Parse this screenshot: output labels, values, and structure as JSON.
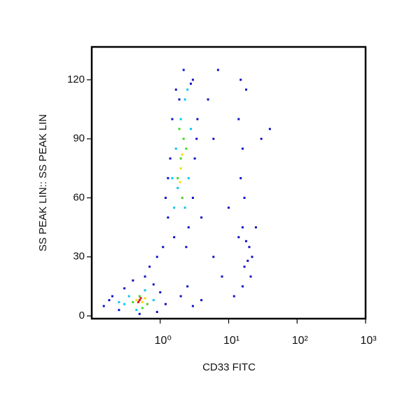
{
  "chart_data": {
    "type": "scatter",
    "x_label": "CD33 FITC",
    "y_label": "SS PEAK LIN:: SS PEAK LIN",
    "xscale": "log",
    "xlim": [
      0.1,
      1000
    ],
    "xticks": [
      {
        "value": 1,
        "label": "10⁰"
      },
      {
        "value": 10,
        "label": "10¹"
      },
      {
        "value": 100,
        "label": "10²"
      },
      {
        "value": 1000,
        "label": "10³"
      }
    ],
    "ylim": [
      -1.4,
      136.7
    ],
    "yticks": [
      0,
      30,
      60,
      90,
      120
    ],
    "grid": false,
    "series": [
      {
        "color": "#1010c8",
        "x": [
          1.3,
          1.2,
          1.4,
          1.5,
          1.7,
          2.2,
          3,
          3.5,
          3.2,
          3,
          2.6,
          1.6,
          1.1,
          1.9,
          2.8,
          1.3,
          3.4,
          2.4,
          5,
          7,
          6,
          4,
          0.15,
          0.2,
          0.25,
          0.3,
          0.4,
          0.6,
          0.8,
          1,
          1.2,
          0.9,
          0.5,
          0.18,
          0.7,
          0.9,
          2,
          3,
          2.5,
          4,
          15,
          18,
          14,
          16,
          15,
          17,
          16,
          14,
          18,
          20,
          22,
          19,
          17,
          21,
          16,
          25,
          30,
          40,
          12,
          10,
          8,
          6
        ],
        "values": [
          50,
          60,
          80,
          100,
          115,
          125,
          120,
          100,
          80,
          60,
          45,
          40,
          35,
          110,
          118,
          70,
          90,
          35,
          110,
          125,
          90,
          50,
          5,
          10,
          3,
          14,
          18,
          20,
          16,
          12,
          6,
          2,
          1,
          8,
          25,
          30,
          10,
          5,
          15,
          8,
          120,
          115,
          100,
          85,
          70,
          60,
          45,
          40,
          38,
          35,
          30,
          28,
          25,
          20,
          15,
          45,
          90,
          95,
          10,
          55,
          20,
          30
        ]
      },
      {
        "color": "#00c8f0",
        "x": [
          1.6,
          1.8,
          1.7,
          2,
          2.3,
          2.8,
          2.6,
          2.3,
          1.5,
          2.5,
          0.3,
          0.35,
          0.6,
          0.8,
          0.45,
          0.25
        ],
        "values": [
          55,
          65,
          85,
          100,
          110,
          95,
          70,
          55,
          70,
          115,
          6,
          10,
          13,
          8,
          3,
          7
        ]
      },
      {
        "color": "#40d820",
        "x": [
          1.8,
          2,
          2.2,
          2.1,
          2.4,
          1.9,
          0.4,
          0.5,
          0.65,
          0.55
        ],
        "values": [
          70,
          80,
          90,
          60,
          85,
          95,
          7,
          10,
          6,
          4
        ]
      },
      {
        "color": "#f0e000",
        "x": [
          2,
          2.1,
          1.95,
          0.45,
          0.55,
          0.6
        ],
        "values": [
          75,
          82,
          68,
          8,
          7,
          9
        ]
      },
      {
        "color": "#e01010",
        "x": [
          0.5,
          0.48,
          0.52
        ],
        "values": [
          8,
          7,
          9
        ]
      }
    ]
  }
}
